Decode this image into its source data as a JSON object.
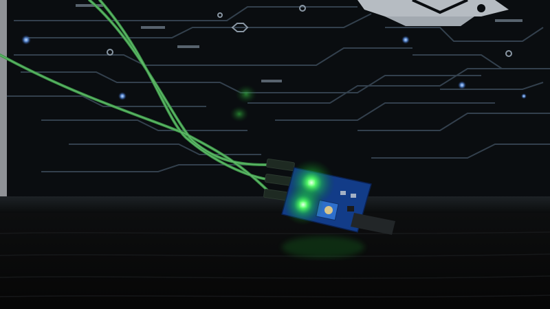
{
  "scene": {
    "subject": "sensor-module",
    "colors": {
      "mat": "#0b0f12",
      "circuit_trace": "#3a4a5a",
      "circuit_glow": "#6ea8ff",
      "wire": "#3f9a4a",
      "led_glow": "#2dff4a",
      "pcb": "#123c88",
      "table": "#0a0b0c"
    },
    "wires": 3,
    "leds_lit": 2
  }
}
